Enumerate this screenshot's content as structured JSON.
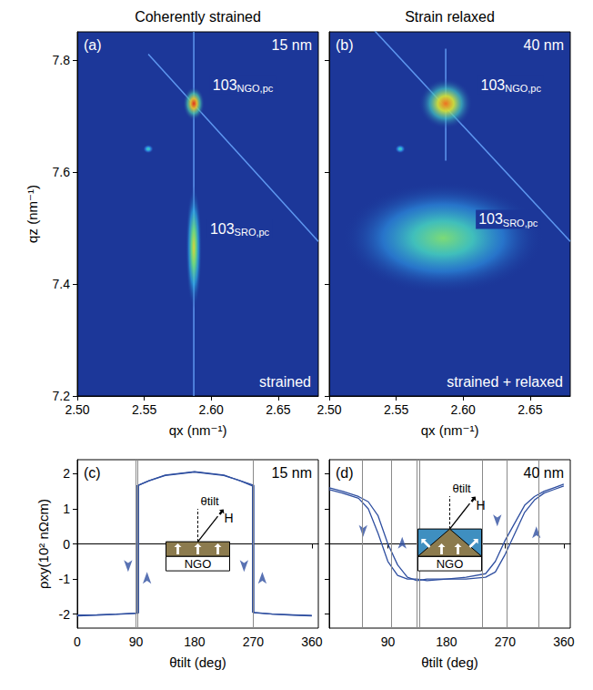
{
  "chart_data": [
    {
      "type": "reciprocal_space_map",
      "title": "Coherently strained",
      "panel_label": "(a)",
      "thickness_label": "15 nm",
      "note": "strained",
      "xlabel": "qx (nm⁻¹)",
      "ylabel": "qz (nm⁻¹)",
      "xlim": [
        2.5,
        2.68
      ],
      "ylim": [
        7.2,
        7.85
      ],
      "xticks": [
        {
          "value": 2.5,
          "label": "2.50"
        },
        {
          "value": 2.55,
          "label": "2.55"
        },
        {
          "value": 2.6,
          "label": "2.60"
        },
        {
          "value": 2.65,
          "label": "2.65"
        }
      ],
      "yticks": [
        7.2,
        7.4,
        7.6,
        7.8
      ],
      "color": "#1c3799",
      "peaks": [
        {
          "qx": 2.587,
          "qz": 7.722,
          "qx_spread": 0.008,
          "qz_spread": 0.03,
          "intensity": 1.0,
          "label": "103",
          "label_sub": "NGO,pc"
        },
        {
          "qx": 2.587,
          "qz": 7.465,
          "qx_spread": 0.006,
          "qz_spread": 0.11,
          "intensity": 0.7,
          "label": "103",
          "label_sub": "SRO,pc"
        },
        {
          "qx": 2.553,
          "qz": 7.641,
          "qx_spread": 0.004,
          "qz_spread": 0.008,
          "intensity": 0.45
        }
      ],
      "streaks": [
        {
          "qx": [
            2.587,
            2.587
          ],
          "qz": [
            7.2,
            7.85
          ],
          "color": "#6aa8ff"
        },
        {
          "qx": [
            2.553,
            2.68
          ],
          "qz": [
            7.81,
            7.476
          ],
          "color": "#6aa8ff"
        }
      ]
    },
    {
      "type": "reciprocal_space_map",
      "title": "Strain relaxed",
      "panel_label": "(b)",
      "thickness_label": "40 nm",
      "note": "strained + relaxed",
      "xlabel": "qx (nm⁻¹)",
      "xlim": [
        2.5,
        2.68
      ],
      "ylim": [
        7.2,
        7.85
      ],
      "xticks": [
        {
          "value": 2.5,
          "label": "2.50"
        },
        {
          "value": 2.55,
          "label": "2.55"
        },
        {
          "value": 2.6,
          "label": "2.60"
        },
        {
          "value": 2.65,
          "label": "2.65"
        }
      ],
      "yticks": [
        7.2,
        7.4,
        7.6,
        7.8
      ],
      "tick_labels": "x",
      "color": "#1c3799",
      "peaks": [
        {
          "qx": 2.587,
          "qz": 7.722,
          "qx_spread": 0.02,
          "qz_spread": 0.045,
          "intensity": 0.9,
          "label": "103",
          "label_sub": "NGO,pc"
        },
        {
          "qx": 2.585,
          "qz": 7.482,
          "qx_spread": 0.075,
          "qz_spread": 0.1,
          "intensity": 0.55,
          "label": "103",
          "label_sub": "SRO,pc"
        },
        {
          "qx": 2.553,
          "qz": 7.641,
          "qx_spread": 0.004,
          "qz_spread": 0.008,
          "intensity": 0.45
        }
      ],
      "streaks": [
        {
          "qx": [
            2.587,
            2.587
          ],
          "qz": [
            7.62,
            7.82
          ],
          "color": "#6aa8ff"
        },
        {
          "qx": [
            2.523,
            2.68
          ],
          "qz": [
            7.88,
            7.476
          ],
          "color": "#6aa8ff"
        }
      ]
    },
    {
      "type": "line",
      "panel_label": "(c)",
      "thickness_label": "15 nm",
      "xlabel": "θtilt (deg)",
      "ylabel": "ρxy(10² nΩcm)",
      "xlim": [
        0,
        370
      ],
      "ylim": [
        -2.4,
        2.4
      ],
      "xticks": [
        0,
        90,
        180,
        270,
        360
      ],
      "yticks": [
        -2,
        -1,
        0,
        1,
        2
      ],
      "series": [
        {
          "color": "#2f4fa0",
          "x": [
            0,
            30,
            60,
            91,
            91,
            110,
            135,
            180,
            225,
            250,
            269,
            269,
            300,
            330,
            360
          ],
          "values": [
            -2.05,
            -2.03,
            -2.01,
            -1.98,
            1.65,
            1.8,
            1.95,
            2.05,
            1.95,
            1.8,
            1.65,
            -1.95,
            -2.0,
            -2.03,
            -2.05
          ]
        },
        {
          "color": "#2f4fa0",
          "x": [
            0,
            30,
            60,
            94,
            94,
            110,
            135,
            180,
            225,
            250,
            271,
            271,
            300,
            330,
            360
          ],
          "values": [
            -2.03,
            -2.02,
            -2.0,
            -1.97,
            1.67,
            1.8,
            1.96,
            2.06,
            1.96,
            1.8,
            1.67,
            -1.96,
            -2.0,
            -2.02,
            -2.04
          ]
        }
      ],
      "vlines": [
        90,
        93,
        270
      ],
      "arrows": [
        {
          "x": 78,
          "y": -0.8,
          "direction": "down"
        },
        {
          "x": 107,
          "y": -0.8,
          "direction": "up"
        },
        {
          "x": 256,
          "y": -0.8,
          "direction": "down"
        },
        {
          "x": 284,
          "y": -0.8,
          "direction": "up"
        }
      ],
      "inset": {
        "substrate": "NGO",
        "angle_label": "θtilt",
        "field_label": "H",
        "shape": "flat"
      }
    },
    {
      "type": "line",
      "panel_label": "(d)",
      "thickness_label": "40 nm",
      "xlabel": "θtilt (deg)",
      "xlim": [
        0,
        370
      ],
      "ylim": [
        -2.4,
        2.4
      ],
      "xticks": [
        90,
        180,
        270,
        360
      ],
      "yticks": [
        -2,
        -1,
        0,
        1,
        2
      ],
      "tick_labels": "x",
      "series": [
        {
          "color": "#2f4fa0",
          "x": [
            0,
            20,
            45,
            60,
            75,
            90,
            105,
            120,
            135,
            150,
            180,
            210,
            240,
            255,
            270,
            285,
            300,
            315,
            330,
            345,
            360
          ],
          "values": [
            1.55,
            1.45,
            1.3,
            1.0,
            0.3,
            -0.5,
            -0.9,
            -1.0,
            -1.0,
            -1.05,
            -1.0,
            -1.0,
            -0.95,
            -0.8,
            -0.3,
            0.3,
            0.9,
            1.25,
            1.45,
            1.55,
            1.65
          ]
        },
        {
          "color": "#2f4fa0",
          "x": [
            0,
            20,
            45,
            60,
            75,
            90,
            105,
            120,
            135,
            150,
            180,
            210,
            240,
            255,
            270,
            285,
            300,
            315,
            330,
            345,
            360
          ],
          "values": [
            1.6,
            1.5,
            1.35,
            1.2,
            0.8,
            0.0,
            -0.6,
            -0.95,
            -1.05,
            -1.0,
            -1.0,
            -0.95,
            -0.85,
            -0.5,
            0.1,
            0.6,
            1.1,
            1.35,
            1.5,
            1.6,
            1.7
          ]
        }
      ],
      "vlines": [
        50,
        95,
        135,
        138,
        235,
        272,
        322
      ],
      "arrows": [
        {
          "x": 52,
          "y": 0.2,
          "direction": "down"
        },
        {
          "x": 112,
          "y": 0.2,
          "direction": "up"
        },
        {
          "x": 258,
          "y": 0.5,
          "direction": "down"
        },
        {
          "x": 318,
          "y": 0.5,
          "direction": "up"
        }
      ],
      "inset": {
        "substrate": "NGO",
        "angle_label": "θtilt",
        "field_label": "H",
        "shape": "faceted"
      }
    }
  ]
}
